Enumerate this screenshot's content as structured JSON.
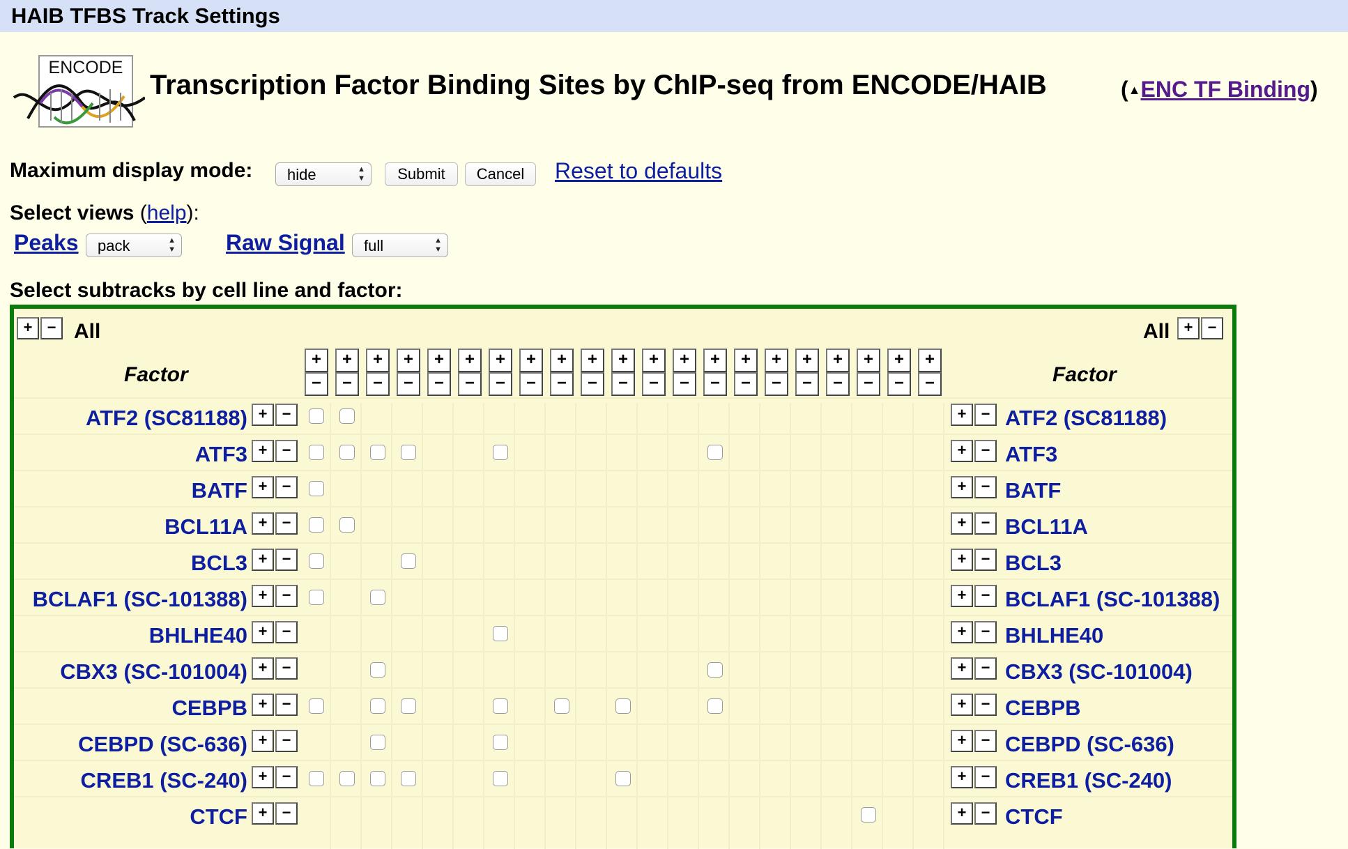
{
  "window": {
    "title": "HAIB TFBS Track Settings"
  },
  "header": {
    "logo_text": "ENCODE",
    "title": "Transcription Factor Binding Sites by ChIP-seq from ENCODE/HAIB",
    "supertrack_open": "(",
    "supertrack_link": "ENC TF Binding",
    "supertrack_close": ")"
  },
  "display_mode": {
    "label": "Maximum display mode:",
    "value": "hide",
    "submit": "Submit",
    "cancel": "Cancel",
    "reset": "Reset to defaults"
  },
  "views": {
    "label": "Select views",
    "help_open": "(",
    "help": "help",
    "help_close": "):",
    "peaks_label": "Peaks",
    "peaks_value": "pack",
    "raw_label": "Raw Signal",
    "raw_value": "full"
  },
  "matrix": {
    "title": "Select subtracks by cell line and factor:",
    "all_label": "All",
    "factor_header": "Factor",
    "plus": "+",
    "minus": "−",
    "column_count": 21,
    "rows": [
      {
        "factor": "ATF2 (SC81188)",
        "checked_cols": [
          0,
          1
        ]
      },
      {
        "factor": "ATF3",
        "checked_cols": [
          0,
          1,
          2,
          3,
          6,
          13
        ]
      },
      {
        "factor": "BATF",
        "checked_cols": [
          0
        ]
      },
      {
        "factor": "BCL11A",
        "checked_cols": [
          0,
          1
        ]
      },
      {
        "factor": "BCL3",
        "checked_cols": [
          0,
          3
        ]
      },
      {
        "factor": "BCLAF1 (SC-101388)",
        "checked_cols": [
          0,
          2
        ]
      },
      {
        "factor": "BHLHE40",
        "checked_cols": [
          6
        ]
      },
      {
        "factor": "CBX3 (SC-101004)",
        "checked_cols": [
          2,
          13
        ]
      },
      {
        "factor": "CEBPB",
        "checked_cols": [
          0,
          2,
          3,
          6,
          8,
          10,
          13
        ]
      },
      {
        "factor": "CEBPD (SC-636)",
        "checked_cols": [
          2,
          6
        ]
      },
      {
        "factor": "CREB1 (SC-240)",
        "checked_cols": [
          0,
          1,
          2,
          3,
          6,
          10
        ]
      },
      {
        "factor": "CTCF",
        "checked_cols": [
          18
        ]
      }
    ]
  }
}
